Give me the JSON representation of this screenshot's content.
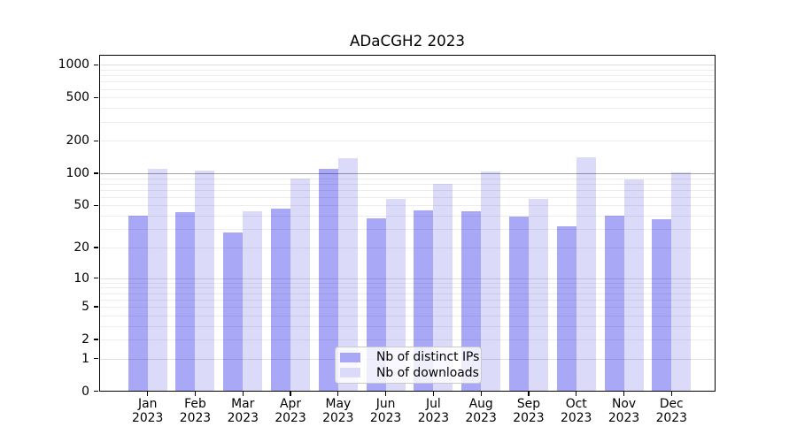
{
  "title": "ADaCGH2 2023",
  "legend": {
    "items": [
      {
        "label": "Nb of distinct IPs"
      },
      {
        "label": "Nb of downloads"
      }
    ]
  },
  "chart_data": {
    "type": "bar",
    "title": "ADaCGH2 2023",
    "scale": "log1p",
    "grid": true,
    "legend_position": "lower center",
    "x_year": "2023",
    "x_months": [
      "Jan",
      "Feb",
      "Mar",
      "Apr",
      "May",
      "Jun",
      "Jul",
      "Aug",
      "Sep",
      "Oct",
      "Nov",
      "Dec"
    ],
    "categories": [
      "Jan 2023",
      "Feb 2023",
      "Mar 2023",
      "Apr 2023",
      "May 2023",
      "Jun 2023",
      "Jul 2023",
      "Aug 2023",
      "Sep 2023",
      "Oct 2023",
      "Nov 2023",
      "Dec 2023"
    ],
    "series": [
      {
        "name": "Nb of distinct IPs",
        "color": "#a8a8f6",
        "values": [
          40,
          43,
          28,
          47,
          110,
          38,
          45,
          44,
          39,
          32,
          40,
          37
        ]
      },
      {
        "name": "Nb of downloads",
        "color": "#dbdbf9",
        "values": [
          110,
          106,
          44,
          90,
          138,
          58,
          80,
          104,
          58,
          140,
          87,
          102
        ]
      }
    ],
    "y_ticks": [
      0,
      1,
      2,
      5,
      10,
      20,
      50,
      100,
      200,
      500,
      1000
    ],
    "ylim": [
      0,
      1240
    ],
    "gridlines": {
      "minor": [
        2,
        3,
        4,
        5,
        6,
        7,
        8,
        9,
        20,
        30,
        40,
        50,
        60,
        70,
        80,
        90,
        200,
        300,
        400,
        500,
        600,
        700,
        800,
        900
      ],
      "major": [
        1,
        10,
        1000
      ],
      "emphasized": [
        100
      ]
    }
  }
}
